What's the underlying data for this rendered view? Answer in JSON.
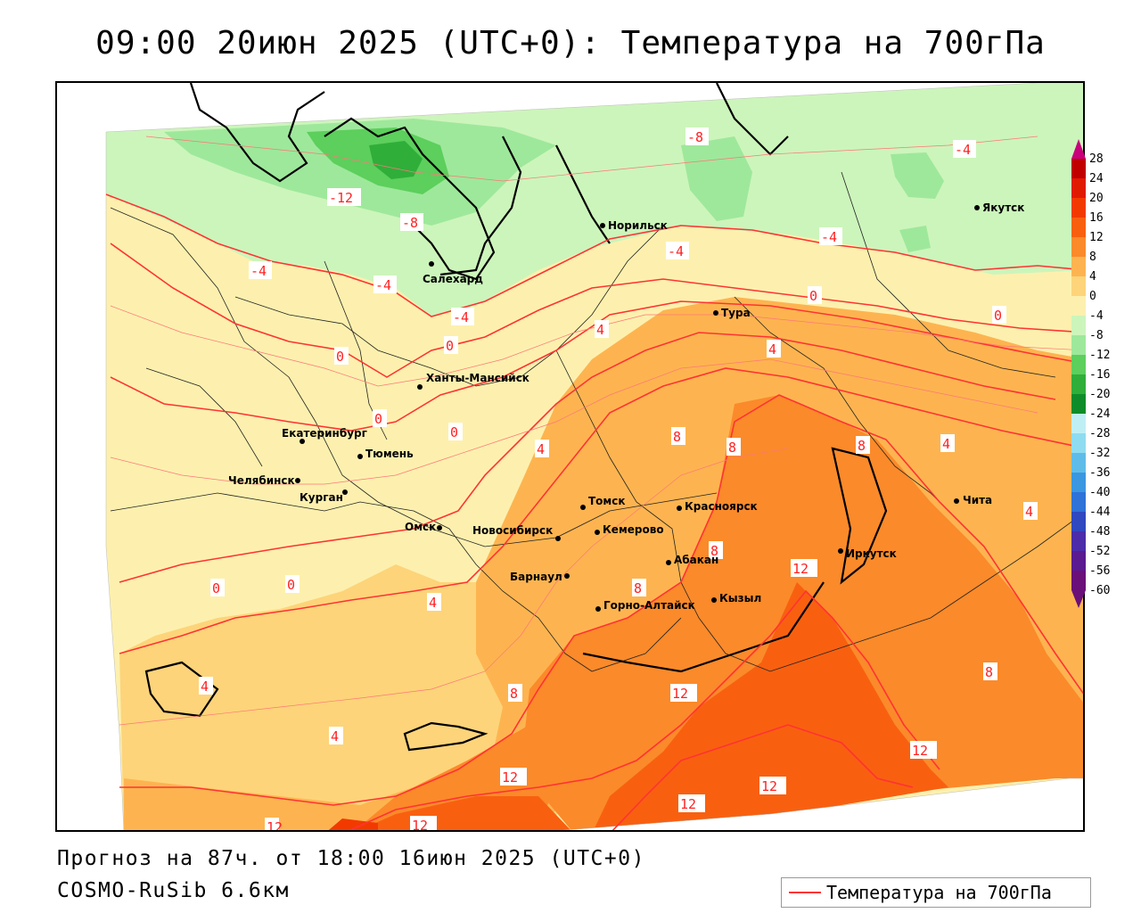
{
  "title": "09:00 20июн 2025 (UTC+0): Температура на 700гПа",
  "forecast_line": "Прогноз на 87ч. от 18:00 16июн 2025 (UTC+0)",
  "model_line": "COSMO-RuSib 6.6км",
  "legend": {
    "label": "Температура на 700гПа",
    "line_color": "#ff3333"
  },
  "colorbar": {
    "ticks": [
      "28",
      "24",
      "20",
      "16",
      "12",
      "8",
      "4",
      "0",
      "-4",
      "-8",
      "-12",
      "-16",
      "-20",
      "-24",
      "-28",
      "-32",
      "-36",
      "-40",
      "-44",
      "-48",
      "-52",
      "-56",
      "-60"
    ],
    "colors": [
      "#c8007c",
      "#c00000",
      "#e01a00",
      "#f23a00",
      "#f86010",
      "#fb8a2a",
      "#fdb450",
      "#fdd47a",
      "#fdf0ae",
      "#ccf5bb",
      "#9ee89b",
      "#5ccf5c",
      "#2fae3a",
      "#0f8c2a",
      "#bfeff5",
      "#8fdcf0",
      "#5fbce8",
      "#3a97e0",
      "#2f72d8",
      "#3048c0",
      "#4c2ca8",
      "#5a1a90",
      "#6a1078"
    ]
  },
  "cities": [
    {
      "name": "Норильск"
    },
    {
      "name": "Якутск"
    },
    {
      "name": "Салехард"
    },
    {
      "name": "Тура"
    },
    {
      "name": "Ханты-Мансийск"
    },
    {
      "name": "Екатеринбург"
    },
    {
      "name": "Тюмень"
    },
    {
      "name": "Челябинск"
    },
    {
      "name": "Курган"
    },
    {
      "name": "Омск"
    },
    {
      "name": "Томск"
    },
    {
      "name": "Новосибирск"
    },
    {
      "name": "Кемерово"
    },
    {
      "name": "Красноярск"
    },
    {
      "name": "Абакан"
    },
    {
      "name": "Барнаул"
    },
    {
      "name": "Горно-Алтайск"
    },
    {
      "name": "Кызыл"
    },
    {
      "name": "Иркутск"
    },
    {
      "name": "Чита"
    }
  ],
  "contour_labels": [
    "-12",
    "-8",
    "-8",
    "-4",
    "-4",
    "-4",
    "-4",
    "-4",
    "-4",
    "0",
    "0",
    "0",
    "0",
    "0",
    "0",
    "0",
    "0",
    "4",
    "4",
    "4",
    "4",
    "4",
    "4",
    "4",
    "4",
    "8",
    "8",
    "8",
    "8",
    "8",
    "8",
    "8",
    "12",
    "12",
    "12",
    "12",
    "12",
    "12",
    "12",
    "12"
  ]
}
